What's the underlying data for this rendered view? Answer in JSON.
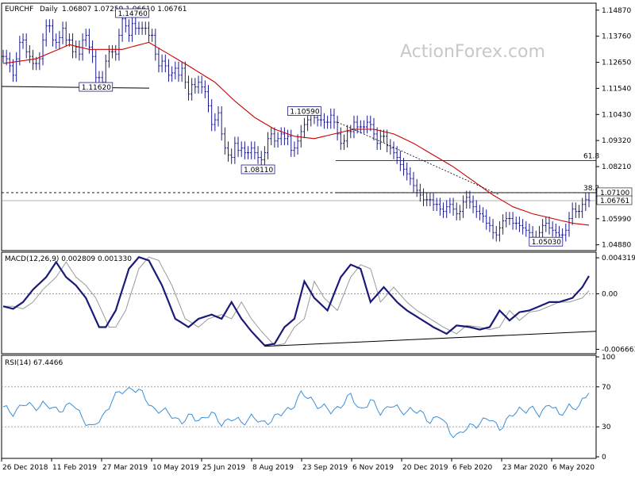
{
  "chart_data": {
    "type": "line",
    "instrument": "EURCHF",
    "timeframe": "Daily",
    "ohlc_readout": "1.06807 1.07259 1.06610 1.06761",
    "watermark": "ActionForex.com",
    "x_labels": [
      "26 Dec 2018",
      "11 Feb 2019",
      "27 Mar 2019",
      "10 May 2019",
      "25 Jun 2019",
      "8 Aug 2019",
      "23 Sep 2019",
      "6 Nov 2019",
      "20 Dec 2019",
      "6 Feb 2020",
      "23 Mar 2020",
      "6 May 2020"
    ],
    "price": {
      "y_ticks": [
        "1.14870",
        "1.13760",
        "1.12650",
        "1.11540",
        "1.10430",
        "1.09320",
        "1.08210",
        "1.07100",
        "1.05990",
        "1.04880"
      ],
      "ylim": [
        1.047,
        1.151
      ],
      "close": [
        1.129,
        1.128,
        1.125,
        1.121,
        1.128,
        1.135,
        1.136,
        1.131,
        1.129,
        1.126,
        1.126,
        1.128,
        1.136,
        1.142,
        1.142,
        1.136,
        1.135,
        1.137,
        1.141,
        1.136,
        1.136,
        1.131,
        1.133,
        1.13,
        1.136,
        1.138,
        1.133,
        1.129,
        1.12,
        1.12,
        1.118,
        1.127,
        1.131,
        1.131,
        1.13,
        1.138,
        1.145,
        1.142,
        1.138,
        1.143,
        1.141,
        1.141,
        1.141,
        1.141,
        1.138,
        1.138,
        1.13,
        1.125,
        1.127,
        1.125,
        1.121,
        1.122,
        1.124,
        1.121,
        1.124,
        1.118,
        1.113,
        1.117,
        1.116,
        1.118,
        1.116,
        1.114,
        1.108,
        1.1,
        1.102,
        1.105,
        1.096,
        1.09,
        1.087,
        1.086,
        1.092,
        1.089,
        1.09,
        1.088,
        1.088,
        1.09,
        1.088,
        1.086,
        1.085,
        1.088,
        1.094,
        1.096,
        1.093,
        1.094,
        1.096,
        1.094,
        1.095,
        1.089,
        1.09,
        1.093,
        1.097,
        1.1,
        1.102,
        1.104,
        1.103,
        1.102,
        1.102,
        1.101,
        1.101,
        1.104,
        1.101,
        1.096,
        1.092,
        1.093,
        1.097,
        1.097,
        1.101,
        1.099,
        1.099,
        1.099,
        1.101,
        1.1,
        1.096,
        1.092,
        1.095,
        1.095,
        1.091,
        1.09,
        1.088,
        1.086,
        1.083,
        1.081,
        1.079,
        1.077,
        1.074,
        1.072,
        1.07,
        1.068,
        1.068,
        1.068,
        1.066,
        1.066,
        1.064,
        1.063,
        1.065,
        1.066,
        1.064,
        1.062,
        1.063,
        1.067,
        1.069,
        1.067,
        1.065,
        1.063,
        1.062,
        1.061,
        1.058,
        1.057,
        1.054,
        1.053,
        1.056,
        1.059,
        1.06,
        1.06,
        1.058,
        1.058,
        1.057,
        1.056,
        1.055,
        1.054,
        1.052,
        1.051,
        1.054,
        1.057,
        1.058,
        1.056,
        1.055,
        1.054,
        1.053,
        1.053,
        1.055,
        1.06,
        1.064,
        1.063,
        1.063,
        1.066,
        1.068,
        1.0676
      ],
      "sma_anchors": [
        [
          0,
          1.126
        ],
        [
          10,
          1.128
        ],
        [
          20,
          1.134
        ],
        [
          26,
          1.132
        ],
        [
          30,
          1.132
        ],
        [
          36,
          1.132
        ],
        [
          44,
          1.135
        ],
        [
          50,
          1.13
        ],
        [
          56,
          1.125
        ],
        [
          64,
          1.118
        ],
        [
          70,
          1.11
        ],
        [
          76,
          1.103
        ],
        [
          82,
          1.098
        ],
        [
          88,
          1.095
        ],
        [
          94,
          1.094
        ],
        [
          100,
          1.096
        ],
        [
          106,
          1.098
        ],
        [
          112,
          1.098
        ],
        [
          118,
          1.096
        ],
        [
          124,
          1.092
        ],
        [
          130,
          1.087
        ],
        [
          136,
          1.082
        ],
        [
          142,
          1.076
        ],
        [
          148,
          1.07
        ],
        [
          154,
          1.065
        ],
        [
          160,
          1.062
        ],
        [
          166,
          1.06
        ],
        [
          172,
          1.058
        ],
        [
          178,
          1.057
        ]
      ],
      "sma_color": "#cc0000",
      "price_color": "#1a1a8c",
      "level_lines": [
        {
          "label": "61.8",
          "value": 1.0847
        },
        {
          "label": "38.2",
          "value": 1.071
        }
      ],
      "current_label": "1.06761",
      "level_label": "1.07100",
      "annotations": [
        {
          "text": "1.14760",
          "index": 39,
          "value": 1.1476
        },
        {
          "text": "1.11620",
          "index": 28,
          "value": 1.1162
        },
        {
          "text": "1.10590",
          "index": 91,
          "value": 1.1059
        },
        {
          "text": "1.08110",
          "index": 77,
          "value": 1.0811
        },
        {
          "text": "1.05030",
          "index": 164,
          "value": 1.0503
        }
      ]
    },
    "macd": {
      "label": "MACD(12,26,9) 0.002809 0.001330",
      "y_ticks": [
        "0.004319",
        "0.00",
        "-0.006663"
      ],
      "ylim": [
        -0.007,
        0.0048
      ],
      "anchors": [
        [
          0,
          -0.0015
        ],
        [
          3,
          -0.0018
        ],
        [
          6,
          -0.001
        ],
        [
          9,
          0.0005
        ],
        [
          13,
          0.002
        ],
        [
          16,
          0.0038
        ],
        [
          19,
          0.002
        ],
        [
          22,
          0.001
        ],
        [
          25,
          -0.0005
        ],
        [
          29,
          -0.004
        ],
        [
          31,
          -0.004
        ],
        [
          34,
          -0.002
        ],
        [
          38,
          0.003
        ],
        [
          41,
          0.0044
        ],
        [
          44,
          0.004
        ],
        [
          48,
          0.001
        ],
        [
          52,
          -0.003
        ],
        [
          56,
          -0.004
        ],
        [
          59,
          -0.003
        ],
        [
          63,
          -0.0025
        ],
        [
          66,
          -0.003
        ],
        [
          69,
          -0.001
        ],
        [
          72,
          -0.003
        ],
        [
          75,
          -0.0045
        ],
        [
          79,
          -0.0062
        ],
        [
          82,
          -0.006
        ],
        [
          85,
          -0.004
        ],
        [
          88,
          -0.003
        ],
        [
          91,
          0.0015
        ],
        [
          94,
          -0.0005
        ],
        [
          98,
          -0.002
        ],
        [
          102,
          0.002
        ],
        [
          105,
          0.0035
        ],
        [
          108,
          0.003
        ],
        [
          111,
          -0.001
        ],
        [
          115,
          0.0008
        ],
        [
          119,
          -0.001
        ],
        [
          122,
          -0.002
        ],
        [
          126,
          -0.003
        ],
        [
          130,
          -0.004
        ],
        [
          134,
          -0.0048
        ],
        [
          137,
          -0.0038
        ],
        [
          141,
          -0.004
        ],
        [
          144,
          -0.0043
        ],
        [
          147,
          -0.004
        ],
        [
          150,
          -0.002
        ],
        [
          153,
          -0.0032
        ],
        [
          156,
          -0.0022
        ],
        [
          159,
          -0.002
        ],
        [
          162,
          -0.0015
        ],
        [
          165,
          -0.001
        ],
        [
          168,
          -0.001
        ],
        [
          172,
          -0.0005
        ],
        [
          175,
          0.0008
        ],
        [
          178,
          0.0028
        ]
      ],
      "signal_color": "#999999",
      "macd_color": "#1a1a7a",
      "trendline": {
        "from": [
          79,
          -0.0063
        ],
        "to": [
          178,
          -0.0045
        ]
      }
    },
    "rsi": {
      "label": "RSI(14) 67.4466",
      "y_ticks": [
        "100",
        "70",
        "30",
        "0"
      ],
      "ylim": [
        0,
        100
      ],
      "anchors": [
        [
          0,
          48
        ],
        [
          3,
          45
        ],
        [
          6,
          52
        ],
        [
          9,
          50
        ],
        [
          12,
          53
        ],
        [
          15,
          47
        ],
        [
          18,
          49
        ],
        [
          21,
          52
        ],
        [
          24,
          40
        ],
        [
          27,
          28
        ],
        [
          30,
          40
        ],
        [
          33,
          58
        ],
        [
          36,
          65
        ],
        [
          39,
          70
        ],
        [
          42,
          62
        ],
        [
          45,
          50
        ],
        [
          48,
          45
        ],
        [
          51,
          42
        ],
        [
          54,
          35
        ],
        [
          57,
          40
        ],
        [
          60,
          38
        ],
        [
          63,
          42
        ],
        [
          66,
          35
        ],
        [
          69,
          37
        ],
        [
          72,
          35
        ],
        [
          75,
          40
        ],
        [
          78,
          33
        ],
        [
          81,
          38
        ],
        [
          84,
          42
        ],
        [
          87,
          50
        ],
        [
          90,
          62
        ],
        [
          93,
          58
        ],
        [
          96,
          50
        ],
        [
          99,
          45
        ],
        [
          102,
          52
        ],
        [
          105,
          60
        ],
        [
          108,
          48
        ],
        [
          111,
          55
        ],
        [
          114,
          45
        ],
        [
          117,
          52
        ],
        [
          120,
          45
        ],
        [
          123,
          48
        ],
        [
          126,
          43
        ],
        [
          129,
          37
        ],
        [
          132,
          40
        ],
        [
          135,
          25
        ],
        [
          138,
          22
        ],
        [
          141,
          30
        ],
        [
          144,
          35
        ],
        [
          147,
          37
        ],
        [
          150,
          30
        ],
        [
          153,
          38
        ],
        [
          156,
          48
        ],
        [
          159,
          48
        ],
        [
          162,
          42
        ],
        [
          165,
          55
        ],
        [
          168,
          40
        ],
        [
          171,
          52
        ],
        [
          174,
          48
        ],
        [
          177,
          67
        ]
      ],
      "color": "#3a8fd8",
      "guides": [
        70,
        30
      ]
    }
  }
}
